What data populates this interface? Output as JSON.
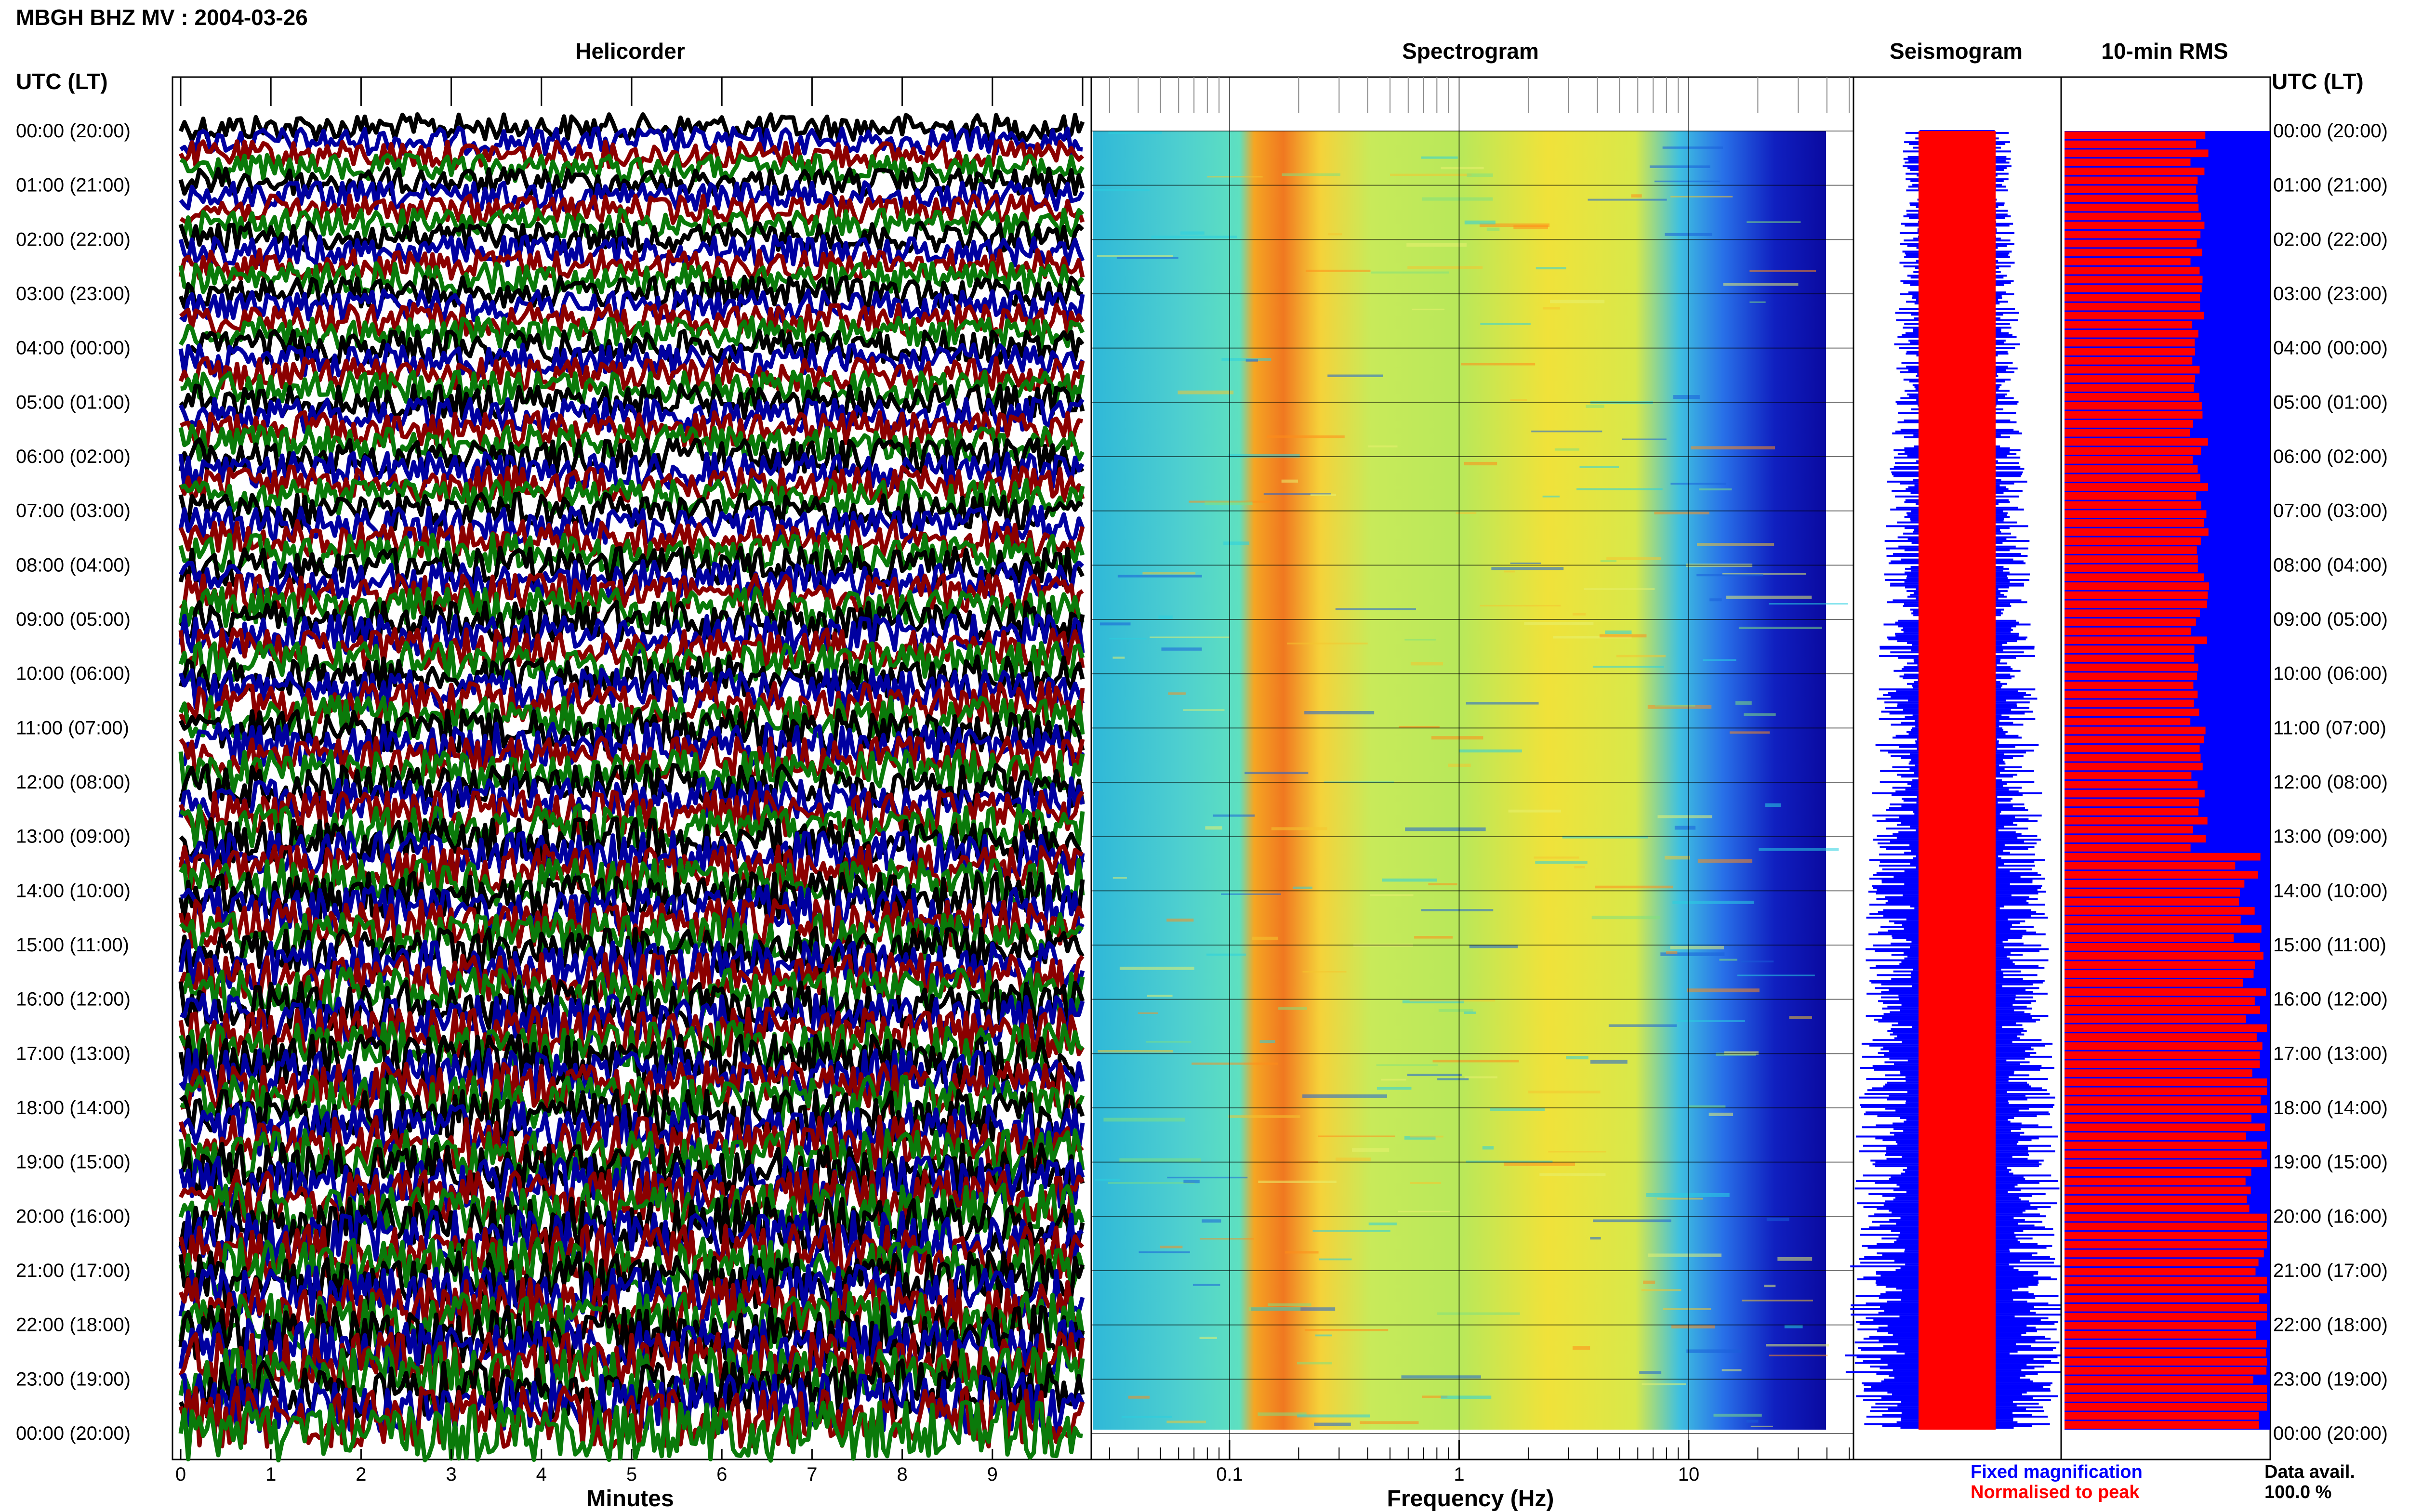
{
  "title": "MBGH BHZ MV : 2004-03-26",
  "time_axis_label": "UTC (LT)",
  "panels": {
    "helicorder": "Helicorder",
    "spectrogram": "Spectrogram",
    "seismogram": "Seismogram",
    "rms": "10-min RMS"
  },
  "time_labels": [
    "00:00 (20:00)",
    "01:00 (21:00)",
    "02:00 (22:00)",
    "03:00 (23:00)",
    "04:00 (00:00)",
    "05:00 (01:00)",
    "06:00 (02:00)",
    "07:00 (03:00)",
    "08:00 (04:00)",
    "09:00 (05:00)",
    "10:00 (06:00)",
    "11:00 (07:00)",
    "12:00 (08:00)",
    "13:00 (09:00)",
    "14:00 (10:00)",
    "15:00 (11:00)",
    "16:00 (12:00)",
    "17:00 (13:00)",
    "18:00 (14:00)",
    "19:00 (15:00)",
    "20:00 (16:00)",
    "21:00 (17:00)",
    "22:00 (18:00)",
    "23:00 (19:00)",
    "00:00 (20:00)"
  ],
  "helicorder": {
    "xlabel": "Minutes",
    "xticks": [
      "0",
      "1",
      "2",
      "3",
      "4",
      "5",
      "6",
      "7",
      "8",
      "9"
    ],
    "xlim": [
      0,
      10
    ],
    "trace_colors": [
      "#000000",
      "#0000a0",
      "#8b0000",
      "#0a7a0a"
    ]
  },
  "spectrogram": {
    "xlabel": "Frequency (Hz)",
    "xticks": [
      "0.1",
      "1",
      "10"
    ],
    "xlim": [
      0.03,
      40
    ],
    "scale": "log"
  },
  "legend": {
    "fixed": "Fixed magnification",
    "normalised": "Normalised to peak",
    "data_avail_label": "Data avail.",
    "data_avail_value": "100.0 %"
  },
  "chart_data": [
    {
      "type": "line",
      "title": "Helicorder",
      "xlabel": "Minutes",
      "xlim": [
        0,
        10
      ],
      "categories": [
        "00:00 (20:00)",
        "01:00 (21:00)",
        "02:00 (22:00)",
        "03:00 (23:00)",
        "04:00 (00:00)",
        "05:00 (01:00)",
        "06:00 (02:00)",
        "07:00 (03:00)",
        "08:00 (04:00)",
        "09:00 (05:00)",
        "10:00 (06:00)",
        "11:00 (07:00)",
        "12:00 (08:00)",
        "13:00 (09:00)",
        "14:00 (10:00)",
        "15:00 (11:00)",
        "16:00 (12:00)",
        "17:00 (13:00)",
        "18:00 (14:00)",
        "19:00 (15:00)",
        "20:00 (16:00)",
        "21:00 (17:00)",
        "22:00 (18:00)",
        "23:00 (19:00)",
        "00:00 (20:00)"
      ]
    },
    {
      "type": "heatmap",
      "title": "Spectrogram",
      "xlabel": "Frequency (Hz)",
      "xscale": "log",
      "xlim": [
        0.03,
        40
      ],
      "peak_band_hz": [
        0.15,
        0.25
      ]
    },
    {
      "type": "bar",
      "title": "10-min RMS",
      "series": [
        {
          "name": "Fixed magnification",
          "color": "#0000ff"
        },
        {
          "name": "Normalised to peak",
          "color": "#ff0000"
        }
      ]
    }
  ]
}
